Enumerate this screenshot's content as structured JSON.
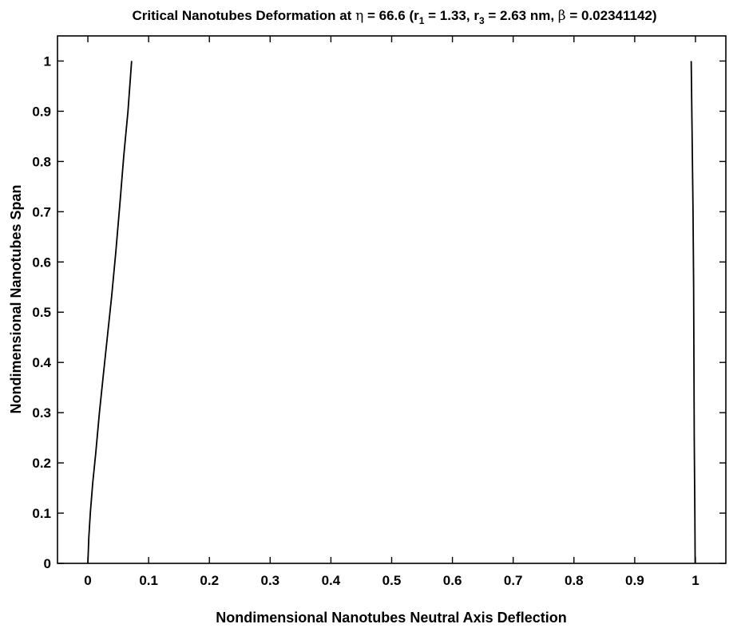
{
  "chart_data": {
    "type": "line",
    "title": {
      "prefix": "Critical Nanotubes Deformation at ",
      "eta_symbol": "η",
      "eta_text": " = 66.6 (r",
      "r1_sub": "1",
      "r1_text": " = 1.33, r",
      "r3_sub": "3",
      "r3_text": " = 2.63 nm, ",
      "beta_symbol": "β",
      "beta_text": " = 0.02341142)"
    },
    "xlabel": "Nondimensional Nanotubes Neutral Axis Deflection",
    "ylabel": "Nondimensional Nanotubes Span",
    "xlim": [
      -0.05,
      1.05
    ],
    "ylim": [
      0,
      1.05
    ],
    "x_ticks": [
      0,
      0.1,
      0.2,
      0.3,
      0.4,
      0.5,
      0.6,
      0.7,
      0.8,
      0.9,
      1
    ],
    "x_tick_labels": [
      "0",
      "0.1",
      "0.2",
      "0.3",
      "0.4",
      "0.5",
      "0.6",
      "0.7",
      "0.8",
      "0.9",
      "1"
    ],
    "y_ticks": [
      0,
      0.1,
      0.2,
      0.3,
      0.4,
      0.5,
      0.6,
      0.7,
      0.8,
      0.9,
      1
    ],
    "y_tick_labels": [
      "0",
      "0.1",
      "0.2",
      "0.3",
      "0.4",
      "0.5",
      "0.6",
      "0.7",
      "0.8",
      "0.9",
      "1"
    ],
    "grid": false,
    "legend": false,
    "series": [
      {
        "color": "#000000",
        "x": [
          0.0,
          0.0015,
          0.004,
          0.008,
          0.013,
          0.019,
          0.025,
          0.032,
          0.039,
          0.046,
          0.053,
          0.059,
          0.066,
          0.072
        ],
        "y": [
          0.0,
          0.05,
          0.1,
          0.16,
          0.22,
          0.3,
          0.37,
          0.45,
          0.53,
          0.62,
          0.72,
          0.81,
          0.9,
          1.0
        ]
      },
      {
        "color": "#000000",
        "x": [
          0.9995,
          0.999,
          0.998,
          0.9975,
          0.997,
          0.996,
          0.995,
          0.994,
          0.993
        ],
        "y": [
          0.0,
          0.1,
          0.25,
          0.4,
          0.55,
          0.7,
          0.8,
          0.9,
          1.0
        ]
      }
    ]
  }
}
